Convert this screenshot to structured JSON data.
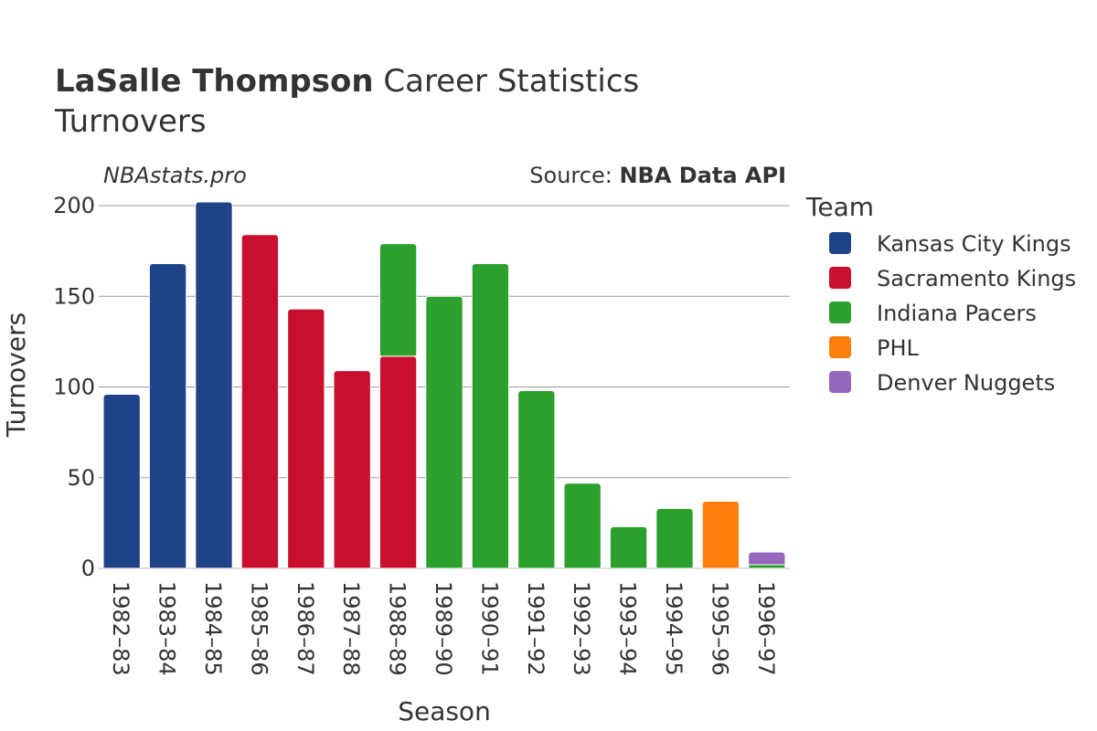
{
  "header": {
    "player_name": "LaSalle Thompson",
    "title_rest": " Career Statistics",
    "subtitle": "Turnovers",
    "brand": "NBAstats.pro",
    "source_label": "Source: ",
    "source_name": "NBA Data API"
  },
  "chart_data": {
    "type": "bar",
    "stacked": true,
    "xlabel": "Season",
    "ylabel": "Turnovers",
    "ylim": [
      0,
      210
    ],
    "yticks": [
      0,
      50,
      100,
      150,
      200
    ],
    "grid": true,
    "legend_title": "Team",
    "legend_position": "right",
    "categories": [
      "1982–83",
      "1983–84",
      "1984–85",
      "1985–86",
      "1986–87",
      "1987–88",
      "1988–89",
      "1989–90",
      "1990–91",
      "1991–92",
      "1992–93",
      "1993–94",
      "1994–95",
      "1995–96",
      "1996–97"
    ],
    "series": [
      {
        "name": "Kansas City Kings",
        "color": "#1f4387",
        "values": [
          96,
          168,
          202,
          0,
          0,
          0,
          0,
          0,
          0,
          0,
          0,
          0,
          0,
          0,
          0
        ]
      },
      {
        "name": "Sacramento Kings",
        "color": "#c8102e",
        "values": [
          0,
          0,
          0,
          184,
          143,
          109,
          117,
          0,
          0,
          0,
          0,
          0,
          0,
          0,
          0
        ]
      },
      {
        "name": "Indiana Pacers",
        "color": "#2ca02c",
        "values": [
          0,
          0,
          0,
          0,
          0,
          0,
          62,
          150,
          168,
          98,
          47,
          23,
          33,
          0,
          2
        ]
      },
      {
        "name": "PHL",
        "color": "#ff7f0e",
        "values": [
          0,
          0,
          0,
          0,
          0,
          0,
          0,
          0,
          0,
          0,
          0,
          0,
          0,
          37,
          0
        ]
      },
      {
        "name": "Denver Nuggets",
        "color": "#9467bd",
        "values": [
          0,
          0,
          0,
          0,
          0,
          0,
          0,
          0,
          0,
          0,
          0,
          0,
          0,
          0,
          7
        ]
      }
    ]
  }
}
